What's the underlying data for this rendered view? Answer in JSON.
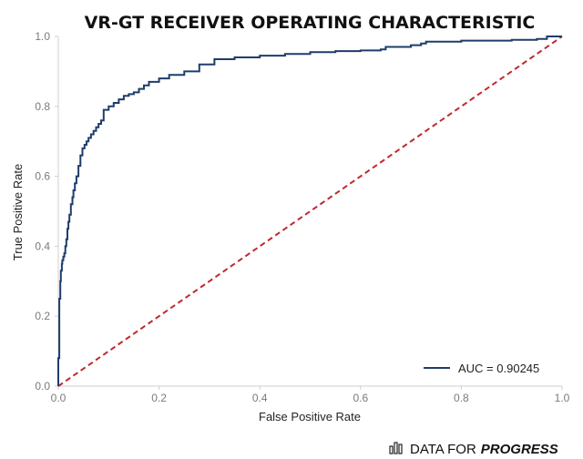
{
  "chart_data": {
    "type": "line",
    "title": "VR-GT RECEIVER OPERATING CHARACTERISTIC",
    "xlabel": "False Positive Rate",
    "ylabel": "True Positive Rate",
    "xlim": [
      0,
      1
    ],
    "ylim": [
      0,
      1
    ],
    "xticks": [
      "0.0",
      "0.2",
      "0.4",
      "0.6",
      "0.8",
      "1.0"
    ],
    "yticks": [
      "0.0",
      "0.2",
      "0.4",
      "0.6",
      "0.8",
      "1.0"
    ],
    "grid": false,
    "legend_position": "bottom-right",
    "series": [
      {
        "name": "AUC = 0.90245",
        "color": "#1f3d6b",
        "style": "solid",
        "x": [
          0.0,
          0.0,
          0.002,
          0.002,
          0.004,
          0.005,
          0.007,
          0.008,
          0.01,
          0.012,
          0.014,
          0.016,
          0.018,
          0.02,
          0.022,
          0.025,
          0.028,
          0.03,
          0.033,
          0.036,
          0.04,
          0.044,
          0.048,
          0.052,
          0.056,
          0.06,
          0.065,
          0.07,
          0.075,
          0.08,
          0.085,
          0.09,
          0.1,
          0.11,
          0.12,
          0.13,
          0.14,
          0.15,
          0.16,
          0.17,
          0.18,
          0.2,
          0.22,
          0.25,
          0.28,
          0.31,
          0.35,
          0.4,
          0.45,
          0.5,
          0.55,
          0.6,
          0.64,
          0.65,
          0.7,
          0.72,
          0.73,
          0.8,
          0.9,
          0.95,
          0.97,
          1.0
        ],
        "y": [
          0.0,
          0.08,
          0.2,
          0.25,
          0.3,
          0.33,
          0.35,
          0.36,
          0.37,
          0.38,
          0.4,
          0.42,
          0.45,
          0.47,
          0.49,
          0.52,
          0.54,
          0.56,
          0.58,
          0.6,
          0.63,
          0.66,
          0.68,
          0.69,
          0.7,
          0.71,
          0.72,
          0.73,
          0.74,
          0.75,
          0.76,
          0.79,
          0.8,
          0.81,
          0.82,
          0.83,
          0.835,
          0.84,
          0.85,
          0.86,
          0.87,
          0.88,
          0.89,
          0.9,
          0.92,
          0.935,
          0.94,
          0.945,
          0.95,
          0.955,
          0.958,
          0.96,
          0.963,
          0.97,
          0.975,
          0.98,
          0.985,
          0.988,
          0.99,
          0.993,
          1.0,
          1.0
        ]
      },
      {
        "role": "chance-diagonal",
        "color": "#c0282d",
        "style": "dashed",
        "x": [
          0,
          1
        ],
        "y": [
          0,
          1
        ]
      }
    ]
  },
  "brand": {
    "prefix": "DATA FOR",
    "emphasis": "PROGRESS",
    "icon": "bar-chart-icon"
  }
}
